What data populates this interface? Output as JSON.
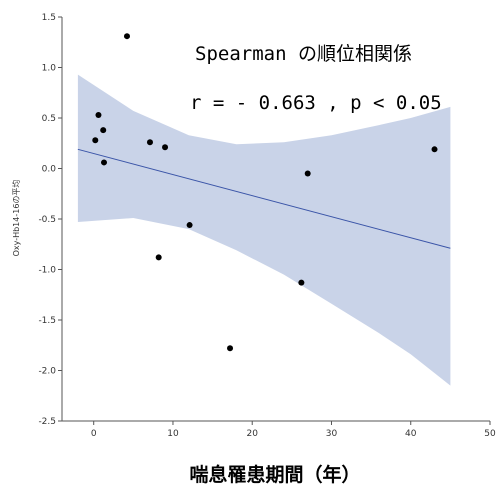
{
  "chart_data": {
    "type": "scatter",
    "title": "",
    "xlabel": "喘息罹患期間（年）",
    "ylabel": "Oxy-Hb14-16の平均",
    "xlim": [
      -4,
      50
    ],
    "ylim": [
      -2.5,
      1.5
    ],
    "x_ticks": [
      0,
      10,
      20,
      30,
      40,
      50
    ],
    "y_ticks": [
      1.5,
      1.0,
      0.5,
      0.0,
      -0.5,
      -1.0,
      -1.5,
      -2.0,
      -2.5
    ],
    "y_tick_labels": [
      "1.5",
      "1.0",
      "0.5",
      "0.0",
      "-0.5",
      "-1.0",
      "-1.5",
      "-2.0",
      "-2.5"
    ],
    "grid": false,
    "annotations": [
      "Spearman の順位相関係",
      "r = - 0.663 , p < 0.05"
    ],
    "points": [
      {
        "x": 0.2,
        "y": 0.28
      },
      {
        "x": 0.6,
        "y": 0.53
      },
      {
        "x": 1.2,
        "y": 0.38
      },
      {
        "x": 1.3,
        "y": 0.06
      },
      {
        "x": 4.2,
        "y": 1.31
      },
      {
        "x": 7.1,
        "y": 0.26
      },
      {
        "x": 9.0,
        "y": 0.21
      },
      {
        "x": 8.2,
        "y": -0.88
      },
      {
        "x": 12.1,
        "y": -0.56
      },
      {
        "x": 17.2,
        "y": -1.78
      },
      {
        "x": 26.2,
        "y": -1.13
      },
      {
        "x": 27.0,
        "y": -0.05
      },
      {
        "x": 43.0,
        "y": 0.19
      }
    ],
    "fit_line": {
      "x": [
        -2,
        45
      ],
      "y": [
        0.19,
        -0.79
      ]
    },
    "confidence_band": {
      "x": [
        -2,
        5,
        12,
        18,
        24,
        30,
        36,
        40,
        45
      ],
      "upper": [
        0.93,
        0.57,
        0.33,
        0.24,
        0.26,
        0.33,
        0.43,
        0.5,
        0.61
      ],
      "lower": [
        -0.53,
        -0.49,
        -0.6,
        -0.81,
        -1.05,
        -1.34,
        -1.63,
        -1.84,
        -2.15
      ]
    },
    "colors": {
      "band": "#c9d3e8",
      "line": "#3b55a8",
      "point": "#000000",
      "axis": "#555555"
    }
  }
}
